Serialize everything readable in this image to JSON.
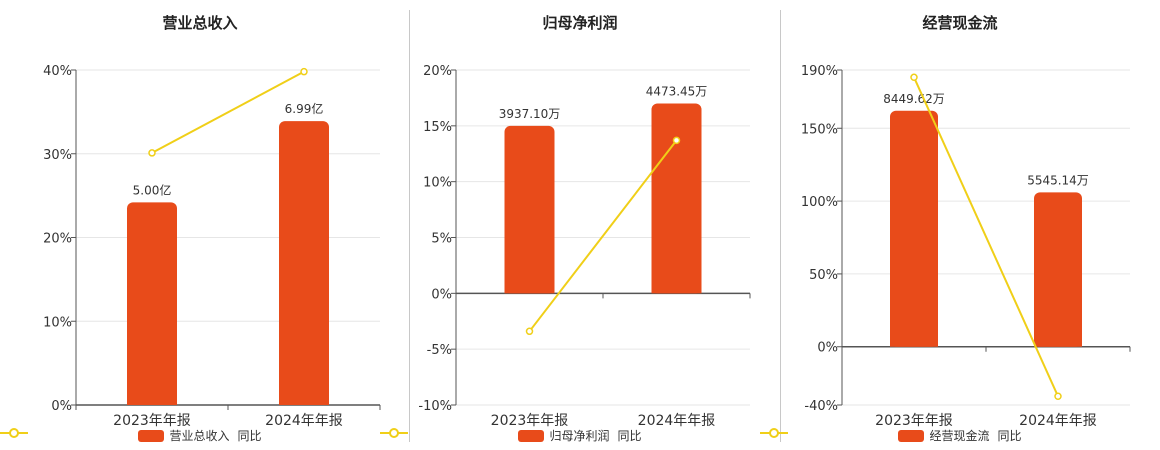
{
  "colors": {
    "bar": "#e84b1a",
    "line": "#f0cf18",
    "grid": "#e6e6e6",
    "axis": "#555555",
    "text": "#333333"
  },
  "chart_data": [
    {
      "type": "bar",
      "title": "营业总收入",
      "categories": [
        "2023年年报",
        "2024年年报"
      ],
      "ylim": [
        0,
        40
      ],
      "yticks": [
        0,
        10,
        20,
        30,
        40
      ],
      "ytick_labels": [
        "0%",
        "10%",
        "20%",
        "30%",
        "40%"
      ],
      "series": [
        {
          "name": "营业总收入",
          "type": "bar",
          "values": [
            24.2,
            33.9
          ],
          "labels": [
            "5.00亿",
            "6.99亿"
          ]
        },
        {
          "name": "同比",
          "type": "line",
          "values": [
            30.1,
            39.8
          ]
        }
      ],
      "legend": [
        "营业总收入",
        "同比"
      ],
      "grid": true,
      "legend_position": "bottom"
    },
    {
      "type": "bar",
      "title": "归母净利润",
      "categories": [
        "2023年年报",
        "2024年年报"
      ],
      "ylim": [
        -10,
        20
      ],
      "yticks": [
        -10,
        -5,
        0,
        5,
        10,
        15,
        20
      ],
      "ytick_labels": [
        "-10%",
        "-5%",
        "0%",
        "5%",
        "10%",
        "15%",
        "20%"
      ],
      "series": [
        {
          "name": "归母净利润",
          "type": "bar",
          "values": [
            15.0,
            17.0
          ],
          "labels": [
            "3937.10万",
            "4473.45万"
          ]
        },
        {
          "name": "同比",
          "type": "line",
          "values": [
            -3.4,
            13.7
          ]
        }
      ],
      "legend": [
        "归母净利润",
        "同比"
      ],
      "grid": true,
      "legend_position": "bottom"
    },
    {
      "type": "bar",
      "title": "经营现金流",
      "categories": [
        "2023年年报",
        "2024年年报"
      ],
      "ylim": [
        -40,
        190
      ],
      "yticks": [
        -40,
        0,
        50,
        100,
        150,
        190
      ],
      "ytick_labels": [
        "-40%",
        "0%",
        "50%",
        "100%",
        "150%",
        "190%"
      ],
      "series": [
        {
          "name": "经营现金流",
          "type": "bar",
          "values": [
            162,
            106
          ],
          "labels": [
            "8449.62万",
            "5545.14万"
          ]
        },
        {
          "name": "同比",
          "type": "line",
          "values": [
            185,
            -34
          ]
        }
      ],
      "legend": [
        "经营现金流",
        "同比"
      ],
      "grid": true,
      "legend_position": "bottom"
    }
  ]
}
